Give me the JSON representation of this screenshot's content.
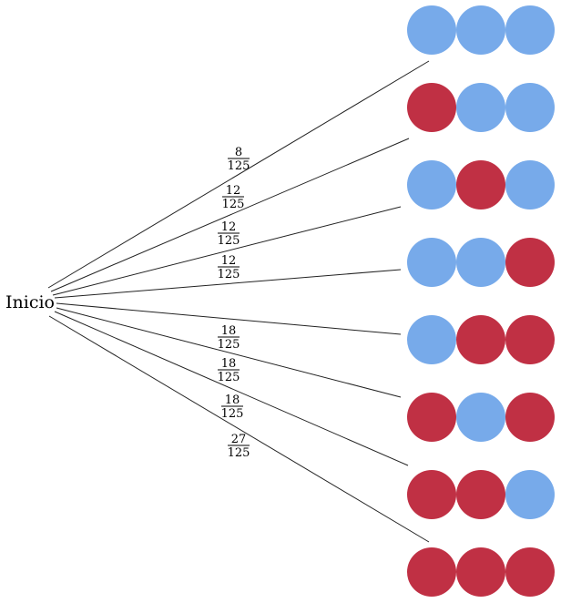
{
  "start_label": "Inicio",
  "colors": {
    "blue": "#77aaea",
    "red": "#c03044",
    "line": "#222222"
  },
  "outcomes": [
    {
      "balls": [
        "blue",
        "blue",
        "blue"
      ],
      "prob_num": "8",
      "prob_den": "125"
    },
    {
      "balls": [
        "red",
        "blue",
        "blue"
      ],
      "prob_num": "12",
      "prob_den": "125"
    },
    {
      "balls": [
        "blue",
        "red",
        "blue"
      ],
      "prob_num": "12",
      "prob_den": "125"
    },
    {
      "balls": [
        "blue",
        "blue",
        "red"
      ],
      "prob_num": "12",
      "prob_den": "125"
    },
    {
      "balls": [
        "blue",
        "red",
        "red"
      ],
      "prob_num": "18",
      "prob_den": "125"
    },
    {
      "balls": [
        "red",
        "blue",
        "red"
      ],
      "prob_num": "18",
      "prob_den": "125"
    },
    {
      "balls": [
        "red",
        "red",
        "blue"
      ],
      "prob_num": "18",
      "prob_den": "125"
    },
    {
      "balls": [
        "red",
        "red",
        "red"
      ],
      "prob_num": "27",
      "prob_den": "125"
    }
  ]
}
